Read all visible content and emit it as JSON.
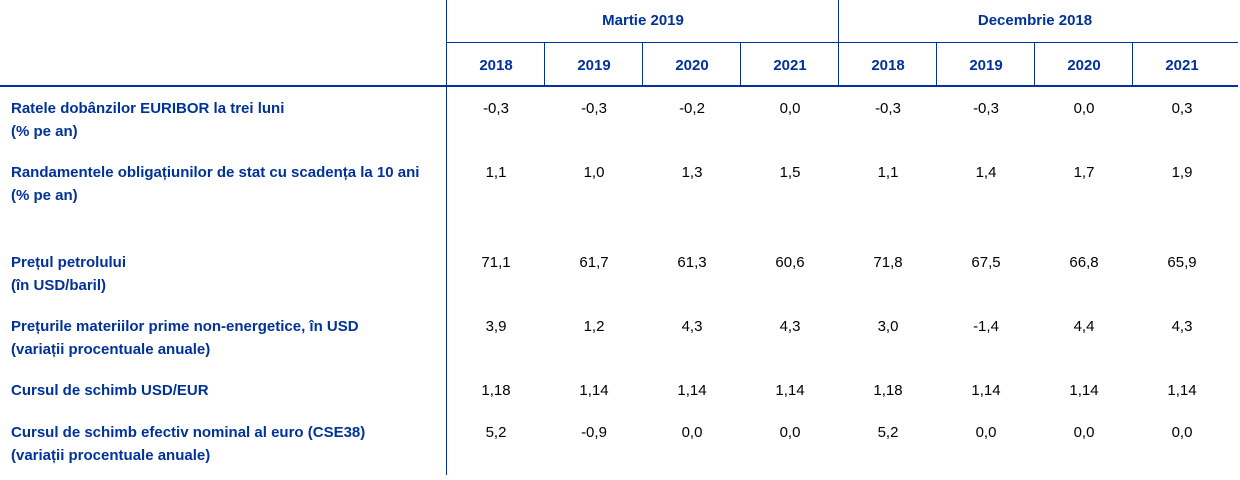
{
  "table": {
    "groups": [
      "Martie 2019",
      "Decembrie 2018"
    ],
    "years": [
      "2018",
      "2019",
      "2020",
      "2021",
      "2018",
      "2019",
      "2020",
      "2021"
    ],
    "rows": [
      {
        "label": "Ratele dobânzilor EURIBOR la trei luni",
        "unit": "(% pe an)",
        "values": [
          "-0,3",
          "-0,3",
          "-0,2",
          "0,0",
          "-0,3",
          "-0,3",
          "0,0",
          "0,3"
        ]
      },
      {
        "label": "Randamentele obligațiunilor de stat cu scadența la 10 ani",
        "unit": "(% pe an)",
        "values": [
          "1,1",
          "1,0",
          "1,3",
          "1,5",
          "1,1",
          "1,4",
          "1,7",
          "1,9"
        ]
      },
      {
        "label": "Prețul petrolului",
        "unit": "(în USD/baril)",
        "values": [
          "71,1",
          "61,7",
          "61,3",
          "60,6",
          "71,8",
          "67,5",
          "66,8",
          "65,9"
        ]
      },
      {
        "label": "Prețurile materiilor prime non-energetice, în USD",
        "unit": "(variații procentuale anuale)",
        "values": [
          "3,9",
          "1,2",
          "4,3",
          "4,3",
          "3,0",
          "-1,4",
          "4,4",
          "4,3"
        ]
      },
      {
        "label": "Cursul de schimb USD/EUR",
        "values": [
          "1,18",
          "1,14",
          "1,14",
          "1,14",
          "1,18",
          "1,14",
          "1,14",
          "1,14"
        ]
      },
      {
        "label": "Cursul de schimb efectiv nominal al euro (CSE38)",
        "unit": "(variații procentuale anuale)",
        "values": [
          "5,2",
          "-0,9",
          "0,0",
          "0,0",
          "5,2",
          "0,0",
          "0,0",
          "0,0"
        ]
      }
    ]
  }
}
